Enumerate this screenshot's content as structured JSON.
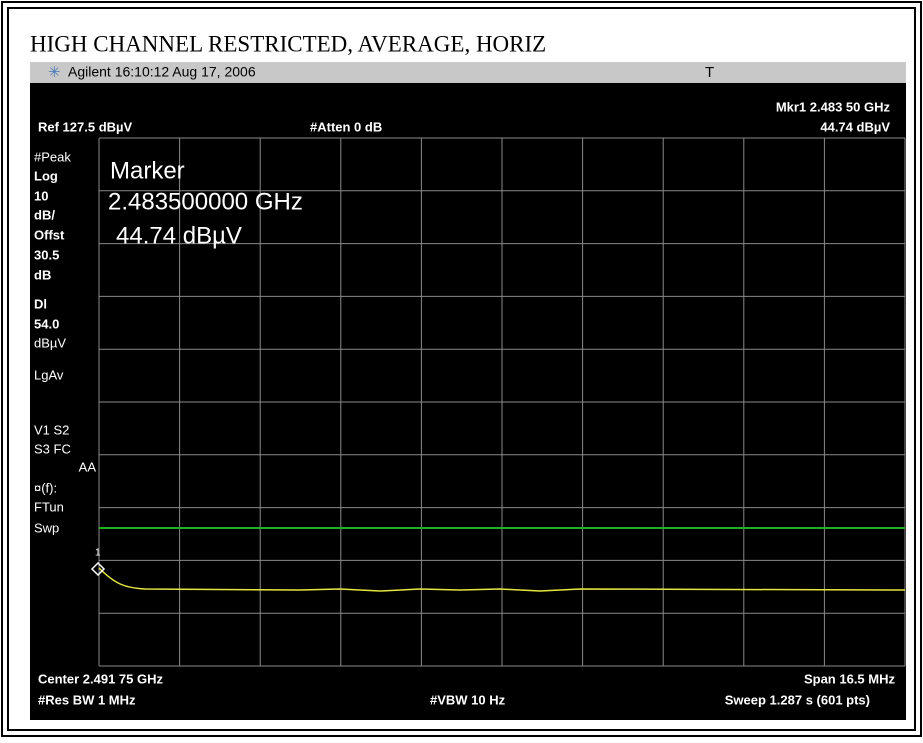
{
  "title": "HIGH CHANNEL RESTRICTED, AVERAGE, HORIZ",
  "titlebar": {
    "brand": "Agilent 16:10:12 Aug 17, 2006",
    "mode": "T"
  },
  "header": {
    "marker_freq": "Mkr1 2.483 50 GHz",
    "ref_level": "Ref 127.5 dBµV",
    "atten": "#Atten 0 dB",
    "marker_level": "44.74 dBµV"
  },
  "left_labels": [
    "#Peak",
    "Log",
    "10",
    "dB/",
    "Offst",
    "30.5",
    "dB",
    "Dl",
    "54.0",
    "dBµV",
    "LgAv",
    "V1  S2",
    "S3  FC",
    "AA",
    "¤(f):",
    "FTun",
    "Swp"
  ],
  "marker_box": {
    "title": "Marker",
    "frequency": "2.483500000 GHz",
    "level": "44.74 dBµV"
  },
  "marker_number": "1",
  "footer": {
    "center": "Center 2.491 75 GHz",
    "span": "Span 16.5 MHz",
    "rbw": "#Res BW 1 MHz",
    "vbw": "#VBW 10 Hz",
    "sweep": "Sweep 1.287 s (601 pts)"
  }
}
